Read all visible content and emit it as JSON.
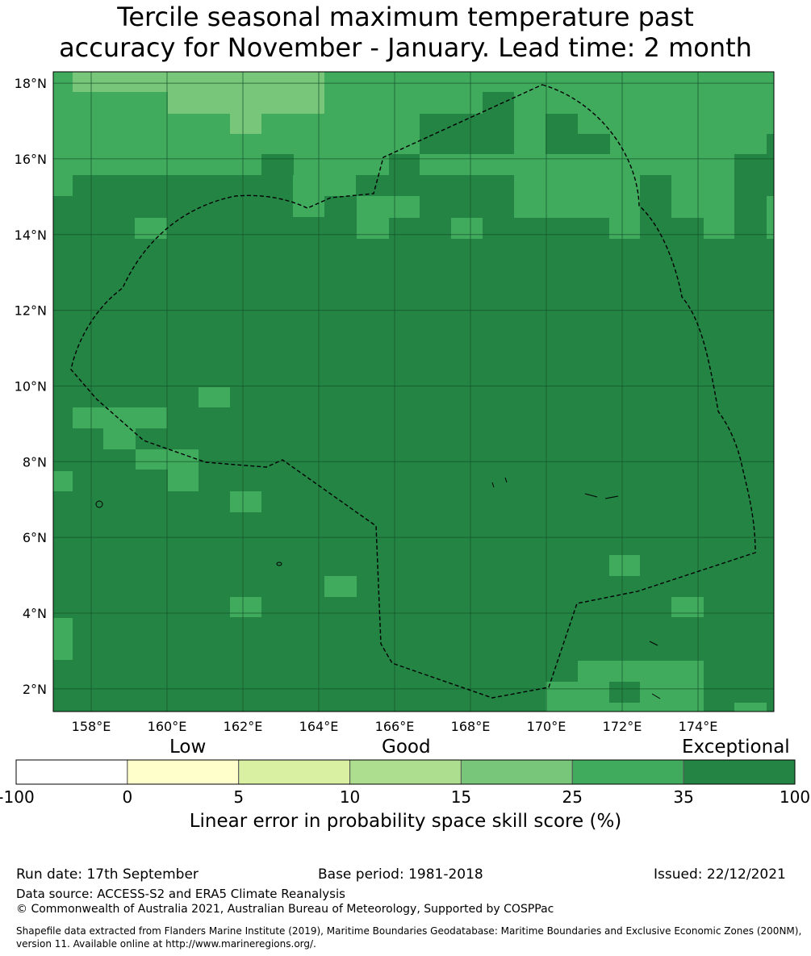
{
  "title_line1": "Tercile seasonal maximum temperature past",
  "title_line2": "accuracy for November - January. Lead time: 2 month",
  "map": {
    "lon_range": [
      157,
      176
    ],
    "lat_range": [
      1.4,
      18.3
    ],
    "lon_ticks": [
      "158°E",
      "160°E",
      "162°E",
      "164°E",
      "166°E",
      "168°E",
      "170°E",
      "172°E",
      "174°E"
    ],
    "lat_ticks": [
      "18°N",
      "16°N",
      "14°N",
      "12°N",
      "10°N",
      "8°N",
      "6°N",
      "4°N",
      "2°N"
    ],
    "grid": true,
    "colors": {
      "exceptional": "#238443",
      "c25_35": "#41ab5d",
      "c15_25": "#78c679"
    }
  },
  "colorbar": {
    "category_labels": {
      "low": "Low",
      "good": "Good",
      "exceptional": "Exceptional"
    },
    "ticks": [
      "-100",
      "0",
      "5",
      "10",
      "15",
      "25",
      "35",
      "100"
    ],
    "colors": [
      "#ffffff",
      "#ffffcc",
      "#d9f0a3",
      "#addd8e",
      "#78c679",
      "#41ab5d",
      "#238443"
    ],
    "title": "Linear error in probability space skill score (%)"
  },
  "footer": {
    "run_date": "Run date: 17th September",
    "base_period": "Base period: 1981-2018",
    "issued": "Issued: 22/12/2021",
    "data_source": "Data source: ACCESS-S2 and ERA5 Climate Reanalysis",
    "copyright": "© Commonwealth of Australia 2021, Australian Bureau of Meteorology, Supported by COSPPac",
    "shapefile": "Shapefile data extracted from Flanders Marine Institute (2019), Maritime Boundaries Geodatabase: Maritime Boundaries and Exclusive Economic Zones (200NM), version 11. Available online at http://www.marineregions.org/."
  }
}
